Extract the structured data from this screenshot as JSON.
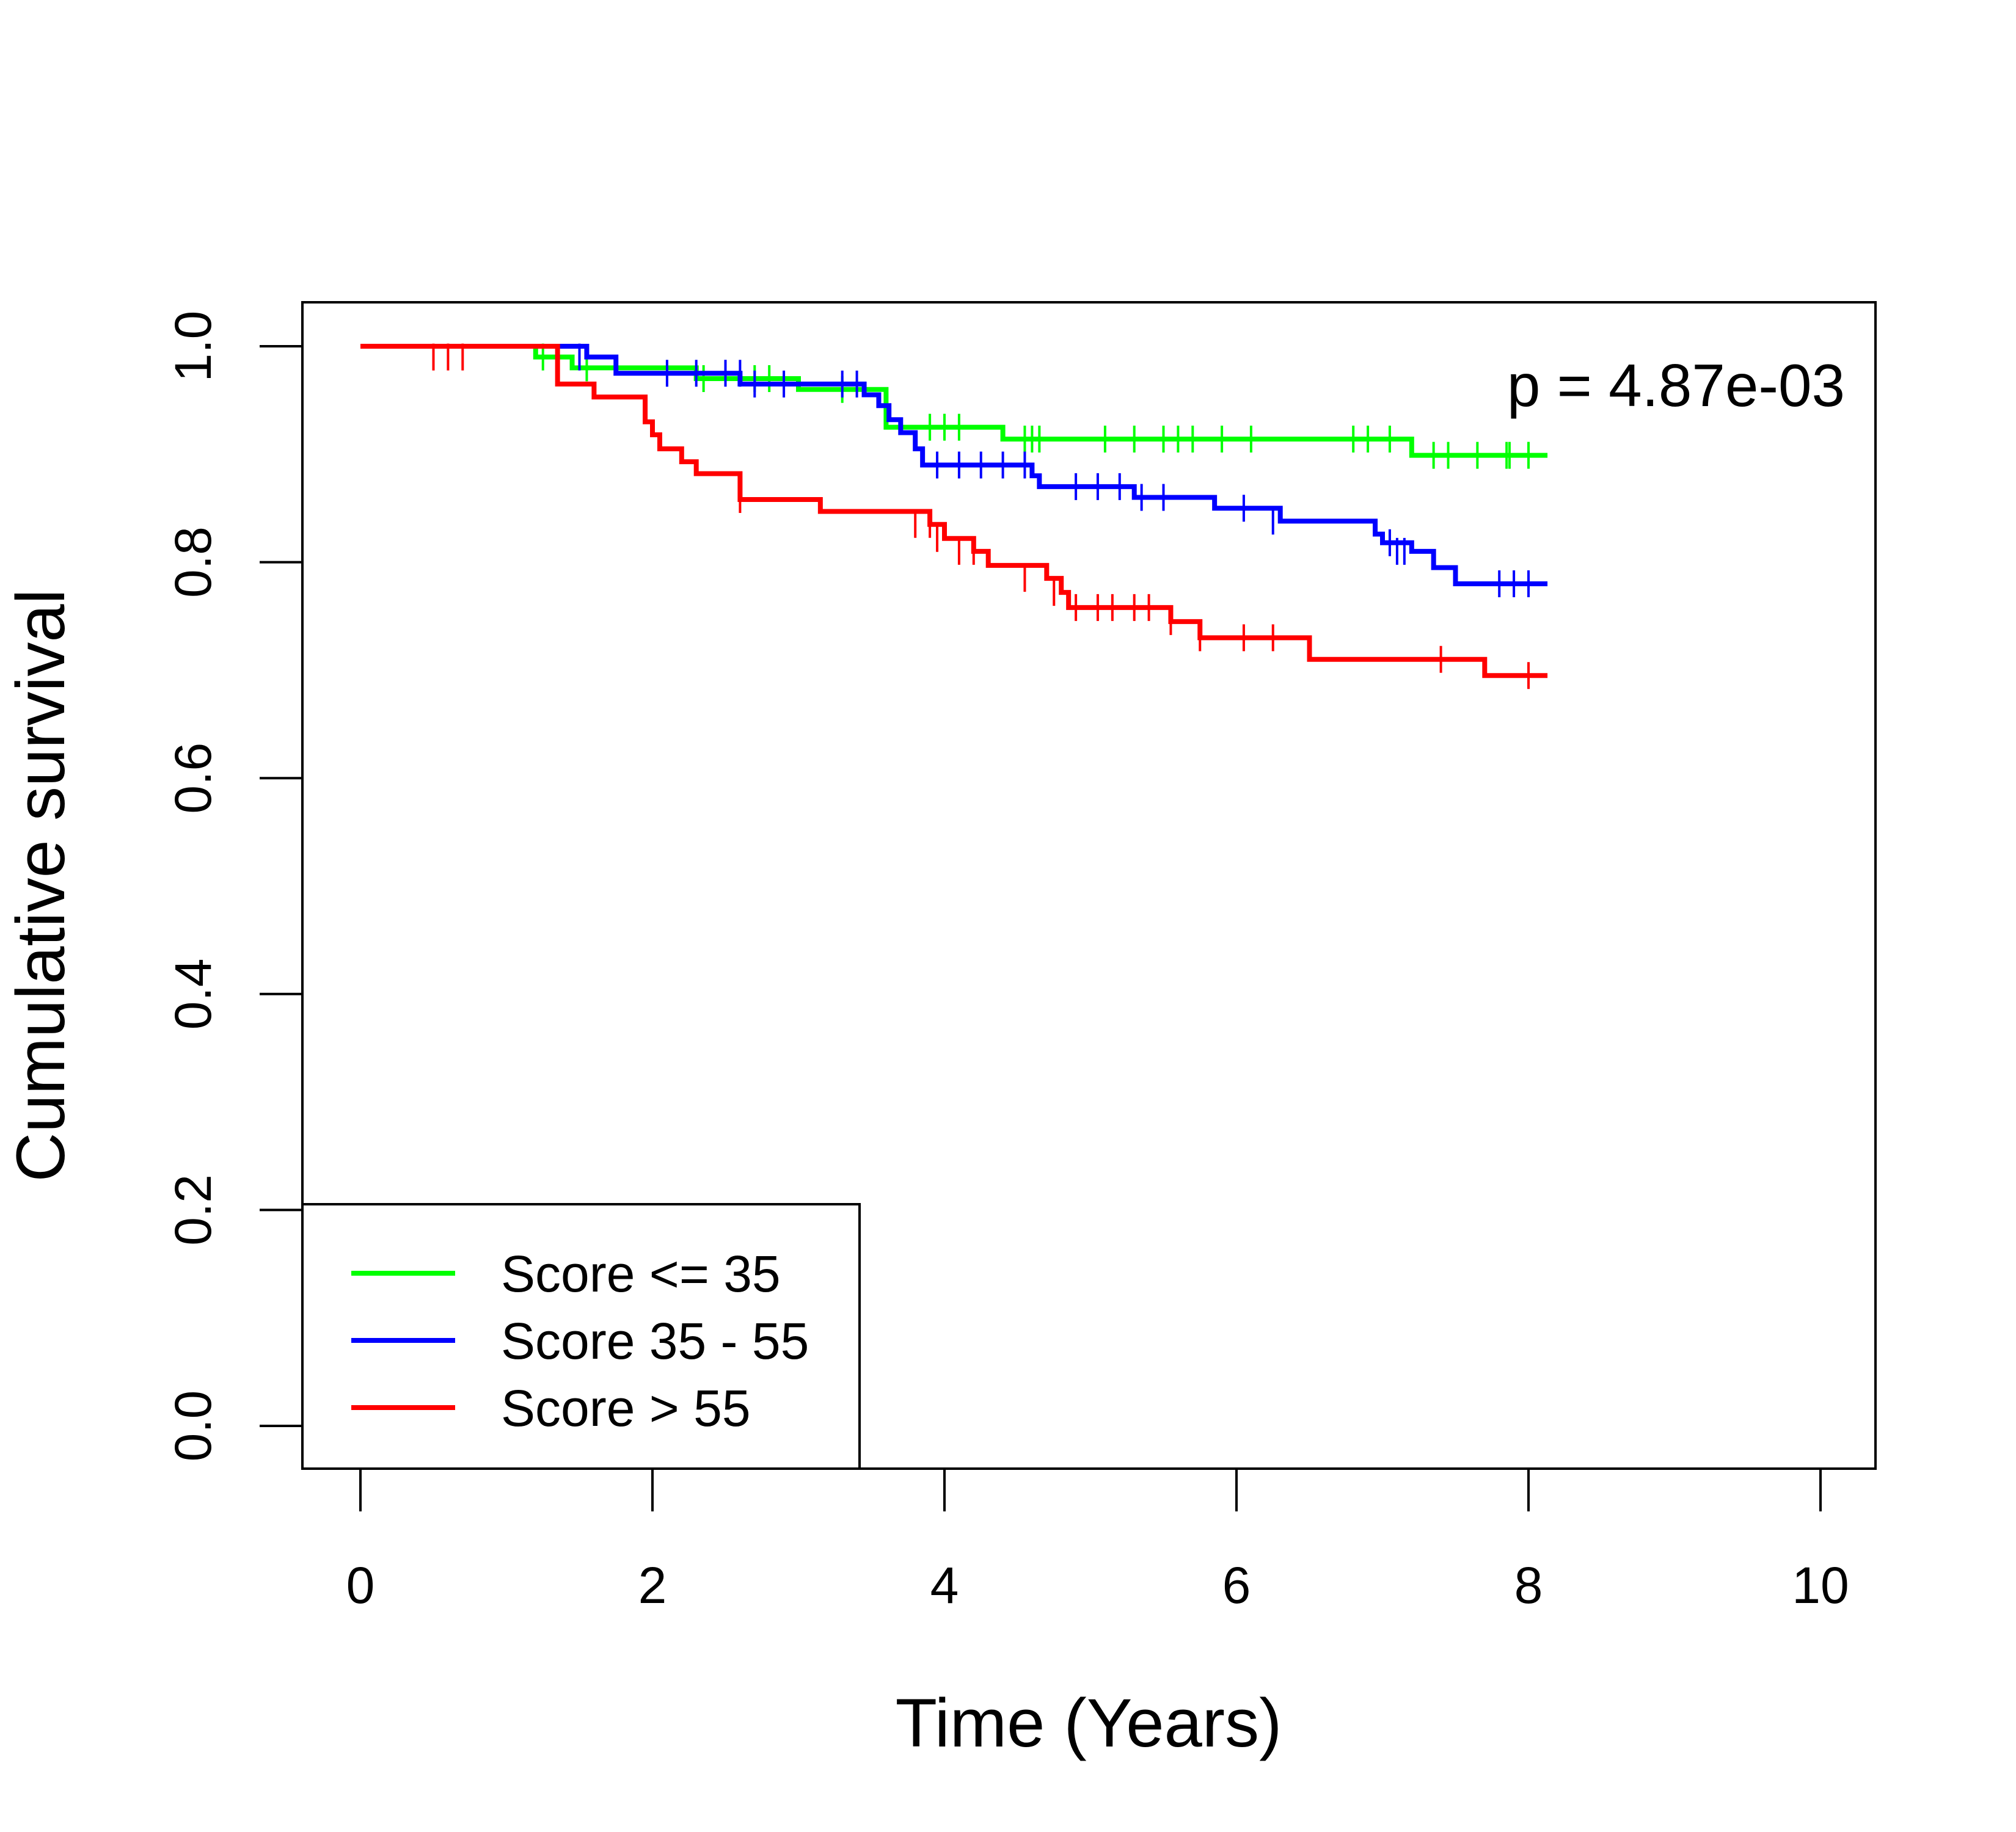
{
  "chart_data": {
    "type": "line",
    "subtype": "kaplan-meier",
    "title": "",
    "xlabel": "Time (Years)",
    "ylabel": "Cumulative survival",
    "xlim": [
      0,
      10
    ],
    "ylim": [
      0,
      1
    ],
    "x_ticks": [
      0,
      2,
      4,
      6,
      8,
      10
    ],
    "x_tick_labels": [
      "0",
      "2",
      "4",
      "6",
      "8",
      "10"
    ],
    "y_ticks": [
      0,
      0.2,
      0.4,
      0.6,
      0.8,
      1.0
    ],
    "y_tick_labels": [
      "0.0",
      "0.2",
      "0.4",
      "0.6",
      "0.8",
      "1.0"
    ],
    "grid": false,
    "legend_position": "bottom-left",
    "annotation": "p = 4.87e-03",
    "series": [
      {
        "name": "Score <= 35",
        "color": "#00ff00",
        "steps": [
          [
            0,
            1.0
          ],
          [
            1.2,
            0.99
          ],
          [
            1.45,
            0.98
          ],
          [
            2.3,
            0.97
          ],
          [
            3.0,
            0.96
          ],
          [
            3.6,
            0.925
          ],
          [
            4.4,
            0.914
          ],
          [
            7.2,
            0.899
          ],
          [
            8.13,
            0.899
          ]
        ],
        "censored": [
          [
            1.25,
            0.99
          ],
          [
            1.55,
            0.98
          ],
          [
            2.35,
            0.97
          ],
          [
            2.7,
            0.97
          ],
          [
            2.8,
            0.97
          ],
          [
            3.3,
            0.96
          ],
          [
            3.9,
            0.925
          ],
          [
            4.0,
            0.925
          ],
          [
            4.1,
            0.925
          ],
          [
            4.55,
            0.914
          ],
          [
            4.6,
            0.914
          ],
          [
            4.65,
            0.914
          ],
          [
            5.1,
            0.914
          ],
          [
            5.3,
            0.914
          ],
          [
            5.5,
            0.914
          ],
          [
            5.6,
            0.914
          ],
          [
            5.7,
            0.914
          ],
          [
            5.9,
            0.914
          ],
          [
            6.1,
            0.914
          ],
          [
            6.8,
            0.914
          ],
          [
            6.9,
            0.914
          ],
          [
            7.05,
            0.914
          ],
          [
            7.35,
            0.899
          ],
          [
            7.45,
            0.899
          ],
          [
            7.65,
            0.899
          ],
          [
            7.85,
            0.899
          ],
          [
            7.87,
            0.899
          ],
          [
            8.0,
            0.899
          ]
        ]
      },
      {
        "name": "Score 35 - 55",
        "color": "#0000ff",
        "steps": [
          [
            0,
            1.0
          ],
          [
            1.55,
            0.99
          ],
          [
            1.75,
            0.975
          ],
          [
            2.6,
            0.965
          ],
          [
            3.45,
            0.955
          ],
          [
            3.55,
            0.945
          ],
          [
            3.62,
            0.932
          ],
          [
            3.7,
            0.92
          ],
          [
            3.8,
            0.905
          ],
          [
            3.85,
            0.89
          ],
          [
            4.6,
            0.88
          ],
          [
            4.65,
            0.87
          ],
          [
            5.3,
            0.86
          ],
          [
            5.85,
            0.85
          ],
          [
            6.3,
            0.838
          ],
          [
            6.95,
            0.826
          ],
          [
            7.0,
            0.818
          ],
          [
            7.2,
            0.81
          ],
          [
            7.35,
            0.795
          ],
          [
            7.5,
            0.78
          ],
          [
            8.13,
            0.78
          ]
        ],
        "censored": [
          [
            1.5,
            0.99
          ],
          [
            2.1,
            0.975
          ],
          [
            2.3,
            0.975
          ],
          [
            2.5,
            0.975
          ],
          [
            2.6,
            0.975
          ],
          [
            2.7,
            0.965
          ],
          [
            2.9,
            0.965
          ],
          [
            3.3,
            0.965
          ],
          [
            3.4,
            0.965
          ],
          [
            3.95,
            0.89
          ],
          [
            4.1,
            0.89
          ],
          [
            4.25,
            0.89
          ],
          [
            4.4,
            0.89
          ],
          [
            4.55,
            0.89
          ],
          [
            4.9,
            0.87
          ],
          [
            5.05,
            0.87
          ],
          [
            5.2,
            0.87
          ],
          [
            5.35,
            0.86
          ],
          [
            5.5,
            0.86
          ],
          [
            6.05,
            0.85
          ],
          [
            6.25,
            0.838
          ],
          [
            7.05,
            0.818
          ],
          [
            7.1,
            0.81
          ],
          [
            7.15,
            0.81
          ],
          [
            7.8,
            0.78
          ],
          [
            7.9,
            0.78
          ],
          [
            8.0,
            0.78
          ]
        ]
      },
      {
        "name": "Score > 55",
        "color": "#ff0000",
        "steps": [
          [
            0,
            1.0
          ],
          [
            1.35,
            0.965
          ],
          [
            1.6,
            0.953
          ],
          [
            1.95,
            0.93
          ],
          [
            2.0,
            0.918
          ],
          [
            2.05,
            0.905
          ],
          [
            2.2,
            0.893
          ],
          [
            2.3,
            0.882
          ],
          [
            2.6,
            0.858
          ],
          [
            3.15,
            0.847
          ],
          [
            3.9,
            0.835
          ],
          [
            4.0,
            0.822
          ],
          [
            4.2,
            0.81
          ],
          [
            4.3,
            0.797
          ],
          [
            4.7,
            0.785
          ],
          [
            4.8,
            0.772
          ],
          [
            4.85,
            0.758
          ],
          [
            5.55,
            0.745
          ],
          [
            5.75,
            0.73
          ],
          [
            6.5,
            0.71
          ],
          [
            7.7,
            0.695
          ],
          [
            8.13,
            0.695
          ]
        ],
        "censored": [
          [
            0.5,
            0.99
          ],
          [
            0.6,
            0.99
          ],
          [
            0.7,
            0.99
          ],
          [
            2.6,
            0.858
          ],
          [
            3.8,
            0.835
          ],
          [
            3.9,
            0.835
          ],
          [
            3.95,
            0.822
          ],
          [
            4.1,
            0.81
          ],
          [
            4.2,
            0.81
          ],
          [
            4.55,
            0.785
          ],
          [
            4.75,
            0.772
          ],
          [
            4.9,
            0.758
          ],
          [
            5.05,
            0.758
          ],
          [
            5.15,
            0.758
          ],
          [
            5.3,
            0.758
          ],
          [
            5.4,
            0.758
          ],
          [
            5.55,
            0.745
          ],
          [
            5.75,
            0.73
          ],
          [
            6.05,
            0.73
          ],
          [
            6.25,
            0.73
          ],
          [
            7.4,
            0.71
          ],
          [
            8.0,
            0.695
          ]
        ]
      }
    ]
  }
}
